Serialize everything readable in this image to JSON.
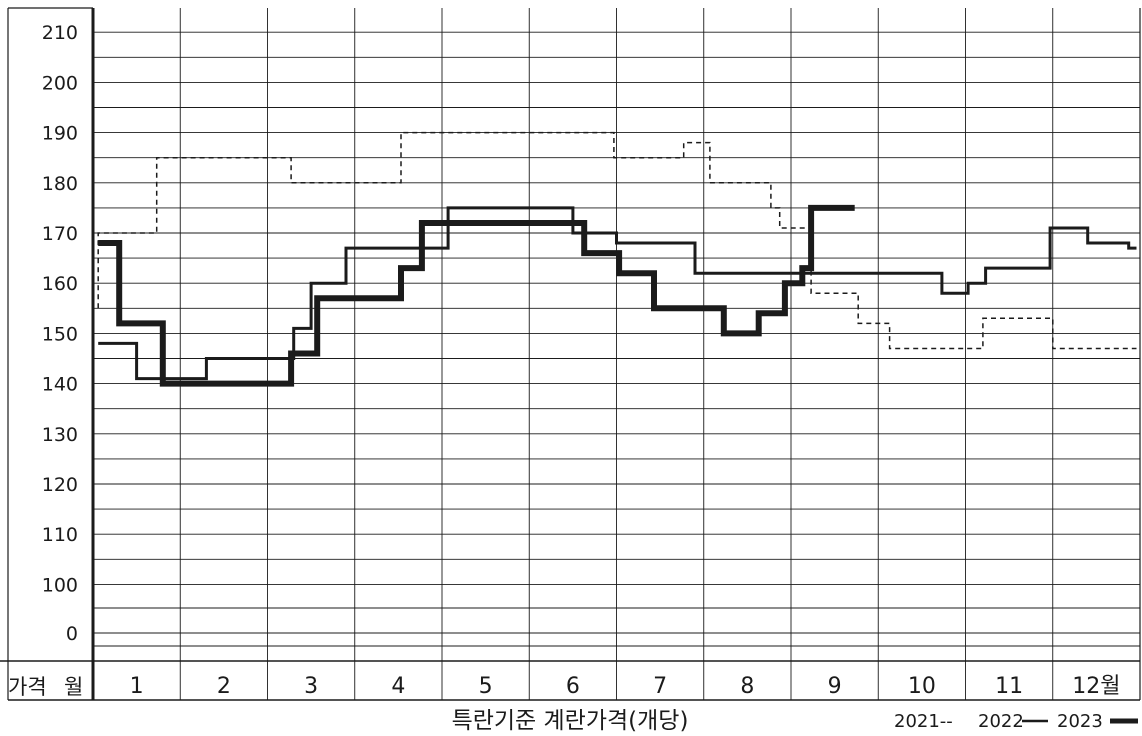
{
  "chart_data": {
    "type": "line",
    "title": "특란기준 계란가격(개당)",
    "corner_label": {
      "price": "가격",
      "month": "월"
    },
    "y_ticks": [
      "210",
      "200",
      "190",
      "180",
      "170",
      "160",
      "150",
      "140",
      "130",
      "120",
      "110",
      "100",
      "0"
    ],
    "categories": [
      "1",
      "2",
      "3",
      "4",
      "5",
      "6",
      "7",
      "8",
      "9",
      "10",
      "11",
      "12월"
    ],
    "grid": true,
    "legend_position": "bottom-right",
    "legend": [
      {
        "label": "2021--",
        "style": "dashed"
      },
      {
        "label": "2022",
        "style": "thin"
      },
      {
        "label": "2023",
        "style": "thick"
      }
    ],
    "series": [
      {
        "name": "2021",
        "style": "dashed",
        "x": [
          0.06,
          0.06,
          0.73,
          0.73,
          2.27,
          2.27,
          3.53,
          3.53,
          5.97,
          5.97,
          6.77,
          6.77,
          7.07,
          7.07,
          7.77,
          7.77,
          7.87,
          7.87,
          8.23,
          8.23,
          8.77,
          8.77,
          9.13,
          9.13,
          10.2,
          10.2,
          11.0,
          11.0,
          11.96
        ],
        "y": [
          155,
          170,
          170,
          185,
          185,
          180,
          180,
          190,
          190,
          185,
          185,
          188,
          188,
          180,
          180,
          175,
          175,
          171,
          171,
          158,
          158,
          152,
          152,
          147,
          147,
          153,
          153,
          147,
          147
        ]
      },
      {
        "name": "2022",
        "style": "thin",
        "x": [
          0.06,
          0.5,
          0.5,
          1.3,
          1.3,
          2.3,
          2.3,
          2.5,
          2.5,
          2.9,
          2.9,
          4.07,
          4.07,
          5.5,
          5.5,
          6.0,
          6.0,
          6.9,
          6.9,
          9.73,
          9.73,
          10.03,
          10.03,
          10.23,
          10.23,
          10.97,
          10.97,
          11.4,
          11.4,
          11.87,
          11.87,
          11.96
        ],
        "y": [
          148,
          148,
          141,
          141,
          145,
          145,
          151,
          151,
          160,
          160,
          167,
          167,
          175,
          175,
          170,
          170,
          168,
          168,
          162,
          162,
          158,
          158,
          160,
          160,
          163,
          163,
          171,
          171,
          168,
          168,
          167,
          167
        ]
      },
      {
        "name": "2023",
        "style": "thick",
        "x": [
          0.06,
          0.3,
          0.3,
          0.8,
          0.8,
          2.27,
          2.27,
          2.57,
          2.57,
          3.53,
          3.53,
          3.77,
          3.77,
          5.63,
          5.63,
          6.03,
          6.03,
          6.43,
          6.43,
          7.23,
          7.23,
          7.63,
          7.63,
          7.93,
          7.93,
          8.13,
          8.13,
          8.23,
          8.23,
          8.73
        ],
        "y": [
          168,
          168,
          152,
          152,
          140,
          140,
          146,
          146,
          157,
          157,
          163,
          163,
          172,
          172,
          166,
          166,
          162,
          162,
          155,
          155,
          150,
          150,
          154,
          154,
          160,
          160,
          163,
          163,
          175,
          175
        ]
      }
    ]
  }
}
